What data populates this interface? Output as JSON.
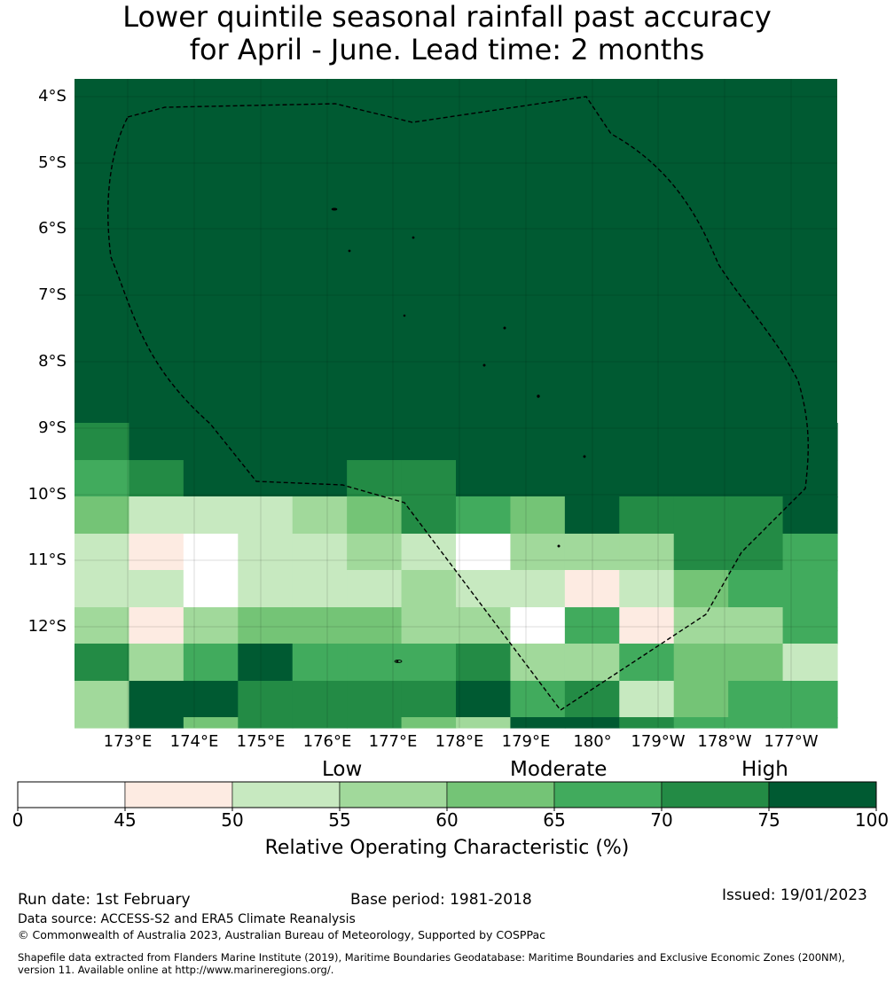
{
  "title": {
    "line1": "Lower quintile seasonal rainfall past accuracy",
    "line2": "for April - June. Lead time: 2 months"
  },
  "map": {
    "lat_labels": [
      "4°S",
      "5°S",
      "6°S",
      "7°S",
      "8°S",
      "9°S",
      "10°S",
      "11°S",
      "12°S"
    ],
    "lon_labels": [
      "173°E",
      "174°E",
      "175°E",
      "176°E",
      "177°E",
      "178°E",
      "179°E",
      "180°",
      "179°W",
      "178°W",
      "177°W"
    ],
    "colors": [
      "#ffffff",
      "#fdebe2",
      "#c7e9c0",
      "#a1d99b",
      "#74c476",
      "#41ab5d",
      "#238b45",
      "#005a32"
    ],
    "grid_rows": [
      "77777777777777",
      "77777777777777",
      "77777777777777",
      "77777777777777",
      "77777777777777",
      "77777777777777",
      "77777777777777",
      "77777777777777",
      "67777777777777",
      "56777667777777",
      "42223465476667",
      "21022320333665",
      "22022232212455",
      "31344433051335",
      "63575556335442",
      "37766667562455",
      "37466643776555"
    ],
    "islands": [
      "ellipse",
      "dot",
      "dot",
      "dot",
      "dot",
      "dot",
      "dot",
      "dot",
      "dot",
      "dot",
      "ellipse"
    ]
  },
  "legend": {
    "categories": [
      "Low",
      "Moderate",
      "High"
    ],
    "ticks": [
      "0",
      "45",
      "50",
      "55",
      "60",
      "65",
      "70",
      "75",
      "100"
    ],
    "label": "Relative Operating Characteristic (%)"
  },
  "footer": {
    "run_date": "Run date: 1st February",
    "base_period": "Base period: 1981-2018",
    "issued": "Issued: 19/01/2023",
    "data_source": "Data source: ACCESS-S2 and ERA5 Climate Reanalysis",
    "copyright": "© Commonwealth of Australia 2023, Australian Bureau of Meteorology, Supported by COSPPac",
    "shapefile_line1": "Shapefile data extracted from Flanders Marine Institute (2019), Maritime Boundaries Geodatabase: Maritime Boundaries and Exclusive Economic Zones (200NM),",
    "shapefile_line2": "version 11. Available online at http://www.marineregions.org/."
  }
}
